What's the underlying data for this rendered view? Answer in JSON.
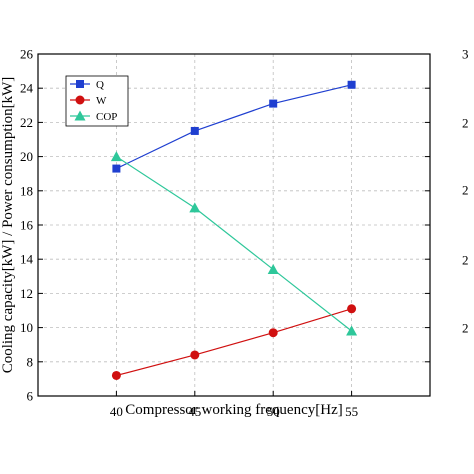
{
  "chart_data": {
    "type": "line",
    "title": "",
    "xlabel": "Compressor working frequency[Hz]",
    "ylabel": "Cooling capacity[kW] / Power consumption[kW]",
    "x": [
      40,
      45,
      50,
      55
    ],
    "xlim": [
      35,
      60
    ],
    "ylim": [
      6,
      26
    ],
    "xticks": [
      "40",
      "45",
      "50",
      "55"
    ],
    "yticks": [
      "6",
      "8",
      "10",
      "12",
      "14",
      "16",
      "18",
      "20",
      "22",
      "24",
      "26"
    ],
    "right_axis_partial_ticks": [
      "3",
      "2",
      "2",
      "2",
      "2"
    ],
    "grid": true,
    "legend_position": "top-left",
    "series": [
      {
        "name": "Q",
        "marker": "square",
        "color": "#1f3fd0",
        "values": [
          19.3,
          21.5,
          23.1,
          24.2
        ]
      },
      {
        "name": "W",
        "marker": "circle",
        "color": "#d01010",
        "values": [
          7.2,
          8.4,
          9.7,
          11.1
        ]
      },
      {
        "name": "COP",
        "marker": "triangle",
        "color": "#2ec79a",
        "axis": "right",
        "values_on_left_scale": [
          20.0,
          17.0,
          13.4,
          9.8
        ]
      }
    ]
  }
}
